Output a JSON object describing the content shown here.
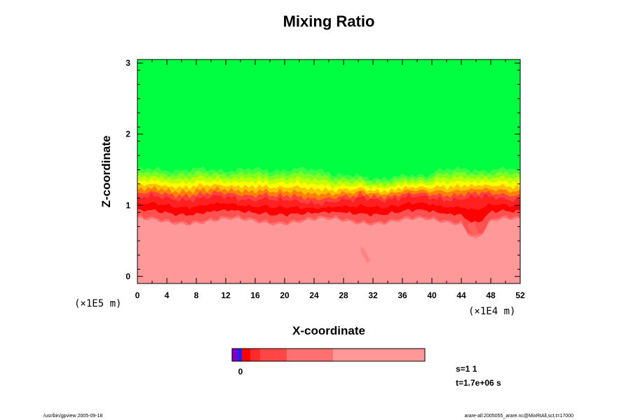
{
  "chart_data": {
    "type": "heatmap",
    "title": "Mixing Ratio",
    "xlabel": "X-coordinate",
    "ylabel": "Z-coordinate",
    "x_ticks": [
      "0",
      "4",
      "8",
      "12",
      "16",
      "20",
      "24",
      "28",
      "32",
      "36",
      "40",
      "44",
      "48",
      "52"
    ],
    "y_ticks": [
      "0",
      "1",
      "2",
      "3"
    ],
    "x_unit": "(×1E4 m)",
    "y_unit": "(×1E5 m)",
    "xlim": [
      0,
      52
    ],
    "ylim": [
      -0.1,
      3.05
    ],
    "colorbar_tick_label": "0",
    "annotations": [
      "s=1 1",
      "t=1.7e+06 s"
    ]
  },
  "footer": {
    "left": "/usr/bin/gpview 2005-09-18",
    "right": "arare-all:2005055_arare.nc@MixRtAll,sct,t=17000"
  },
  "colors": {
    "upper_layer": "#00ff40",
    "lower_layer": "#ff9999",
    "transition": [
      "#40ff40",
      "#80ff20",
      "#c0ff00",
      "#ffff00",
      "#ffc000",
      "#ff8000",
      "#ff4040",
      "#ff2020",
      "#ff0000",
      "#ff5050",
      "#ff7070"
    ]
  }
}
